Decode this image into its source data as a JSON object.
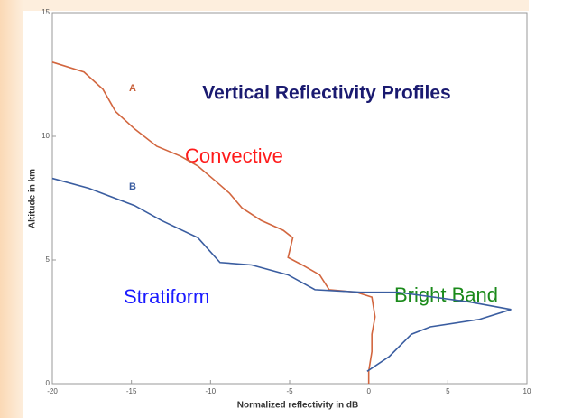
{
  "chart_data": {
    "type": "line",
    "title": "Vertical Reflectivity Profiles",
    "xlabel": "Normalized reflectivity in dB",
    "ylabel": "Altitude in km",
    "xlim": [
      -20,
      10
    ],
    "xticks": [
      -20,
      -15,
      -10,
      -5,
      0,
      5,
      10
    ],
    "ylim": [
      0,
      15
    ],
    "yticks": [
      0,
      5,
      10,
      15
    ],
    "annotations": [
      {
        "text": "Convective",
        "color": "#ff1a1a"
      },
      {
        "text": "Stratiform",
        "color": "#1a1aff"
      },
      {
        "text": "Bright Band",
        "color": "#1a8a1a"
      },
      {
        "text": "A",
        "color": "#c8603a"
      },
      {
        "text": "B",
        "color": "#3a5da0"
      }
    ],
    "series": [
      {
        "name": "Convective",
        "color": "#d2663f",
        "x": [
          -20,
          -18,
          -16.8,
          -16,
          -14.8,
          -13.4,
          -11.9,
          -10.8,
          -9.7,
          -8.8,
          -8.0,
          -6.8,
          -5.4,
          -4.8,
          -5.1,
          -4.2,
          -3.1,
          -2.5,
          -0.8,
          0.2,
          0.4,
          0.2,
          0.2,
          0,
          0
        ],
        "values": [
          13.0,
          12.6,
          11.9,
          11.0,
          10.3,
          9.6,
          9.2,
          8.8,
          8.2,
          7.7,
          7.1,
          6.6,
          6.2,
          5.9,
          5.1,
          4.8,
          4.4,
          3.8,
          3.7,
          3.5,
          2.7,
          2.0,
          1.3,
          0.5,
          0
        ]
      },
      {
        "name": "Stratiform",
        "color": "#3a5da0",
        "x": [
          -20,
          -17.7,
          -14.8,
          -13.1,
          -10.8,
          -9.4,
          -7.4,
          -5.1,
          -3.4,
          -0.5,
          1.8,
          6.4,
          9.0,
          7.0,
          3.9,
          2.7,
          1.3,
          -0.1
        ],
        "values": [
          8.3,
          7.9,
          7.2,
          6.6,
          5.9,
          4.9,
          4.8,
          4.4,
          3.8,
          3.7,
          3.7,
          3.3,
          3.0,
          2.6,
          2.3,
          2.0,
          1.1,
          0.5
        ]
      }
    ]
  }
}
